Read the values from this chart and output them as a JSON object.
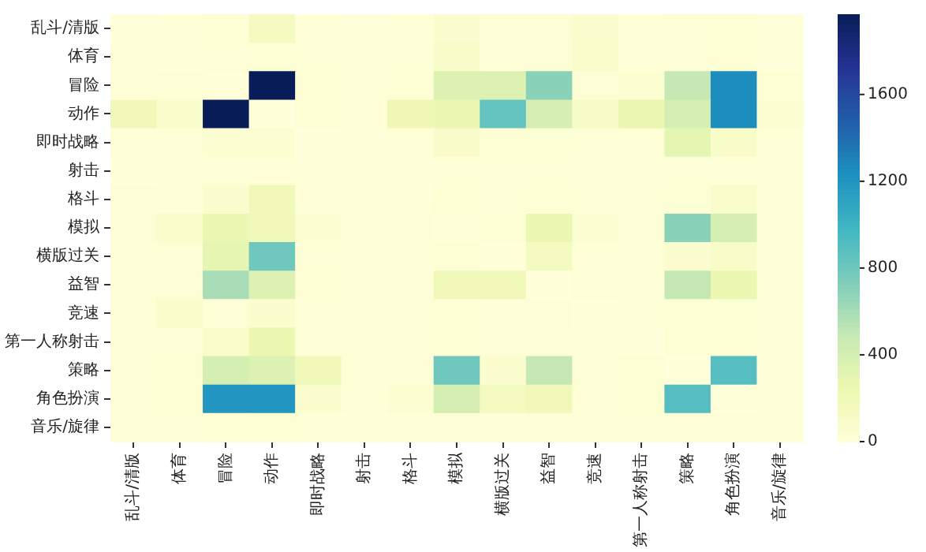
{
  "chart_data": {
    "type": "heatmap",
    "categories": [
      "乱斗/清版",
      "体育",
      "冒险",
      "动作",
      "即时战略",
      "射击",
      "格斗",
      "模拟",
      "横版过关",
      "益智",
      "竞速",
      "第一人称射击",
      "策略",
      "角色扮演",
      "音乐/旋律"
    ],
    "y_categories": [
      "乱斗/清版",
      "体育",
      "冒险",
      "动作",
      "即时战略",
      "射击",
      "格斗",
      "模拟",
      "横版过关",
      "益智",
      "竞速",
      "第一人称射击",
      "策略",
      "角色扮演",
      "音乐/旋律"
    ],
    "cells": [
      [
        0,
        10,
        30,
        150,
        10,
        0,
        10,
        60,
        20,
        20,
        60,
        10,
        20,
        30,
        0
      ],
      [
        10,
        0,
        20,
        40,
        10,
        0,
        10,
        100,
        10,
        20,
        80,
        10,
        20,
        30,
        0
      ],
      [
        20,
        20,
        0,
        1970,
        30,
        10,
        40,
        350,
        350,
        700,
        20,
        50,
        500,
        1250,
        30
      ],
      [
        200,
        80,
        1970,
        0,
        40,
        10,
        230,
        250,
        850,
        400,
        120,
        260,
        400,
        1250,
        50
      ],
      [
        10,
        10,
        50,
        50,
        0,
        0,
        10,
        100,
        30,
        40,
        10,
        10,
        300,
        100,
        10
      ],
      [
        0,
        0,
        10,
        10,
        0,
        0,
        0,
        10,
        10,
        10,
        0,
        0,
        10,
        10,
        0
      ],
      [
        20,
        10,
        60,
        200,
        10,
        0,
        0,
        30,
        20,
        30,
        10,
        10,
        40,
        80,
        0
      ],
      [
        20,
        80,
        250,
        200,
        50,
        10,
        20,
        0,
        30,
        250,
        50,
        20,
        700,
        400,
        20
      ],
      [
        10,
        20,
        300,
        800,
        20,
        10,
        20,
        30,
        0,
        150,
        10,
        20,
        60,
        100,
        10
      ],
      [
        10,
        20,
        600,
        350,
        30,
        10,
        20,
        200,
        200,
        0,
        20,
        20,
        500,
        250,
        20
      ],
      [
        10,
        80,
        20,
        60,
        10,
        0,
        10,
        30,
        10,
        20,
        0,
        10,
        40,
        40,
        10
      ],
      [
        10,
        20,
        80,
        250,
        20,
        10,
        10,
        30,
        20,
        20,
        10,
        0,
        30,
        30,
        0
      ],
      [
        20,
        30,
        400,
        350,
        200,
        10,
        20,
        800,
        60,
        500,
        20,
        30,
        0,
        900,
        10
      ],
      [
        20,
        30,
        1200,
        1200,
        60,
        10,
        50,
        400,
        150,
        200,
        10,
        40,
        900,
        0,
        10
      ],
      [
        10,
        10,
        30,
        40,
        10,
        0,
        10,
        20,
        10,
        20,
        10,
        10,
        20,
        20,
        0
      ]
    ],
    "clim": [
      0,
      1970
    ],
    "cticks": [
      0,
      400,
      800,
      1200,
      1600
    ]
  }
}
